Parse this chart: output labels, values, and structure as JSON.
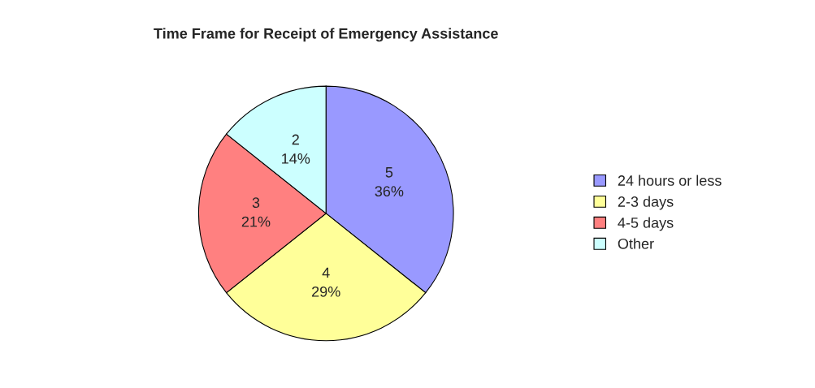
{
  "chart_data": {
    "type": "pie",
    "title": "Time Frame for Receipt of Emergency Assistance",
    "categories": [
      "24 hours or less",
      "2-3 days",
      "4-5 days",
      "Other"
    ],
    "values": [
      5,
      4,
      3,
      2
    ],
    "colors": [
      "#9999ff",
      "#ffff99",
      "#ff8080",
      "#ccffff"
    ],
    "value_labels": [
      "5\n36%",
      "4\n29%",
      "3\n21%",
      "2\n14%"
    ],
    "legend": "right"
  }
}
